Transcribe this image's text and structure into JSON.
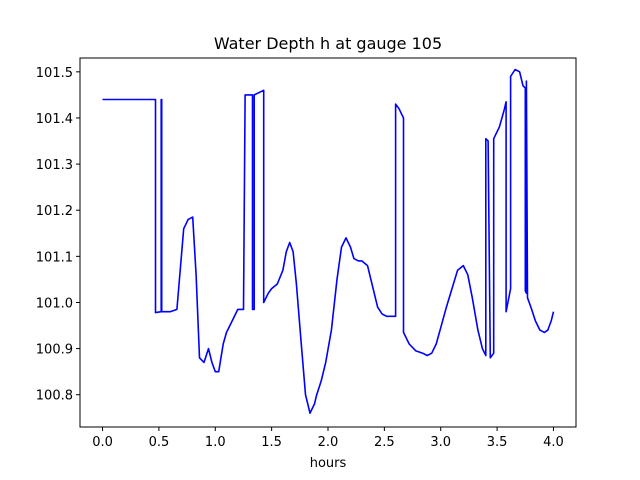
{
  "chart_data": {
    "type": "line",
    "title": "Water Depth h at gauge 105",
    "xlabel": "hours",
    "ylabel": "",
    "xlim": [
      -0.2,
      4.2
    ],
    "ylim": [
      100.73,
      101.53
    ],
    "grid": false,
    "xticks": [
      {
        "value": 0.0,
        "label": "0.0"
      },
      {
        "value": 0.5,
        "label": "0.5"
      },
      {
        "value": 1.0,
        "label": "1.0"
      },
      {
        "value": 1.5,
        "label": "1.5"
      },
      {
        "value": 2.0,
        "label": "2.0"
      },
      {
        "value": 2.5,
        "label": "2.5"
      },
      {
        "value": 3.0,
        "label": "3.0"
      },
      {
        "value": 3.5,
        "label": "3.5"
      },
      {
        "value": 4.0,
        "label": "4.0"
      }
    ],
    "yticks": [
      {
        "value": 100.8,
        "label": "100.8"
      },
      {
        "value": 100.9,
        "label": "100.9"
      },
      {
        "value": 101.0,
        "label": "101.0"
      },
      {
        "value": 101.1,
        "label": "101.1"
      },
      {
        "value": 101.2,
        "label": "101.2"
      },
      {
        "value": 101.3,
        "label": "101.3"
      },
      {
        "value": 101.4,
        "label": "101.4"
      },
      {
        "value": 101.5,
        "label": "101.5"
      }
    ],
    "series": [
      {
        "color": "#0000ff",
        "x": [
          0.0,
          0.47,
          0.47,
          0.52,
          0.52,
          0.525,
          0.525,
          0.6,
          0.66,
          0.72,
          0.76,
          0.8,
          0.83,
          0.86,
          0.9,
          0.94,
          0.97,
          1.0,
          1.03,
          1.07,
          1.1,
          1.15,
          1.2,
          1.25,
          1.265,
          1.265,
          1.3,
          1.33,
          1.33,
          1.345,
          1.345,
          1.43,
          1.43,
          1.47,
          1.5,
          1.55,
          1.6,
          1.63,
          1.66,
          1.69,
          1.72,
          1.76,
          1.8,
          1.84,
          1.88,
          1.9,
          1.94,
          1.98,
          2.03,
          2.08,
          2.12,
          2.16,
          2.2,
          2.23,
          2.27,
          2.3,
          2.35,
          2.4,
          2.44,
          2.48,
          2.52,
          2.56,
          2.6,
          2.6,
          2.63,
          2.67,
          2.67,
          2.72,
          2.78,
          2.84,
          2.88,
          2.92,
          2.96,
          3.0,
          3.05,
          3.1,
          3.15,
          3.2,
          3.24,
          3.28,
          3.33,
          3.37,
          3.4,
          3.4,
          3.42,
          3.44,
          3.47,
          3.47,
          3.52,
          3.56,
          3.58,
          3.58,
          3.62,
          3.62,
          3.66,
          3.7,
          3.73,
          3.75,
          3.75,
          3.76,
          3.76,
          3.77,
          3.8,
          3.84,
          3.88,
          3.92,
          3.95,
          3.98,
          4.0
        ],
        "y": [
          101.44,
          101.44,
          100.978,
          100.98,
          101.44,
          101.44,
          100.98,
          100.98,
          100.985,
          101.16,
          101.18,
          101.185,
          101.06,
          100.88,
          100.87,
          100.9,
          100.87,
          100.85,
          100.85,
          100.91,
          100.935,
          100.96,
          100.985,
          100.985,
          101.445,
          101.45,
          101.45,
          101.45,
          100.985,
          100.985,
          101.45,
          101.46,
          101.0,
          101.02,
          101.03,
          101.04,
          101.07,
          101.11,
          101.13,
          101.11,
          101.04,
          100.92,
          100.8,
          100.76,
          100.78,
          100.8,
          100.83,
          100.87,
          100.94,
          101.05,
          101.12,
          101.14,
          101.12,
          101.095,
          101.09,
          101.09,
          101.08,
          101.03,
          100.99,
          100.975,
          100.97,
          100.97,
          100.97,
          101.43,
          101.42,
          101.4,
          100.935,
          100.91,
          100.895,
          100.89,
          100.885,
          100.89,
          100.91,
          100.945,
          100.99,
          101.03,
          101.07,
          101.08,
          101.06,
          101.01,
          100.94,
          100.9,
          100.885,
          101.355,
          101.35,
          100.88,
          100.89,
          101.355,
          101.38,
          101.415,
          101.435,
          100.98,
          101.03,
          101.49,
          101.505,
          101.5,
          101.47,
          101.465,
          101.025,
          101.02,
          101.48,
          101.01,
          100.99,
          100.96,
          100.94,
          100.935,
          100.94,
          100.96,
          100.98
        ]
      }
    ]
  }
}
